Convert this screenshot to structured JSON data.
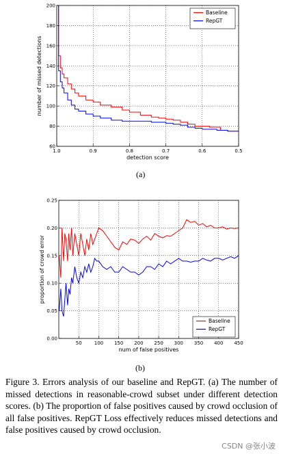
{
  "chart_data": [
    {
      "type": "line",
      "panel": "(a)",
      "xlabel": "detection score",
      "ylabel": "number of missed detections",
      "xlim": [
        1.0,
        0.5
      ],
      "ylim": [
        60,
        200
      ],
      "x_reversed": true,
      "x_ticks": [
        1.0,
        0.9,
        0.8,
        0.7,
        0.6,
        0.5
      ],
      "x_tick_labels": [
        "1.0",
        "0.9",
        "0.8",
        "0.7",
        "0.6",
        "0.5"
      ],
      "y_ticks": [
        60,
        80,
        100,
        120,
        140,
        160,
        180,
        200
      ],
      "y_tick_labels": [
        "60",
        "80",
        "100",
        "120",
        "140",
        "160",
        "180",
        "200"
      ],
      "legend_position": "top-right",
      "grid": true,
      "series": [
        {
          "name": "Baseline",
          "color": "#ff0000",
          "x": [
            1.0,
            0.995,
            0.99,
            0.985,
            0.98,
            0.97,
            0.96,
            0.95,
            0.94,
            0.92,
            0.9,
            0.88,
            0.85,
            0.82,
            0.8,
            0.77,
            0.74,
            0.72,
            0.7,
            0.68,
            0.66,
            0.64,
            0.62,
            0.6,
            0.58,
            0.56,
            0.55,
            0.53,
            0.51,
            0.5
          ],
          "values": [
            200,
            150,
            138,
            132,
            128,
            122,
            117,
            113,
            110,
            106,
            104,
            101,
            99,
            96,
            94,
            91,
            89,
            88,
            87,
            86,
            84,
            82,
            80,
            80,
            79,
            79,
            76,
            75,
            75,
            75
          ]
        },
        {
          "name": "RepGT",
          "color": "#0000ff",
          "x": [
            1.0,
            0.995,
            0.99,
            0.985,
            0.98,
            0.97,
            0.96,
            0.95,
            0.94,
            0.92,
            0.9,
            0.88,
            0.85,
            0.82,
            0.8,
            0.77,
            0.74,
            0.72,
            0.7,
            0.68,
            0.66,
            0.64,
            0.62,
            0.6,
            0.58,
            0.56,
            0.55,
            0.53,
            0.51,
            0.5
          ],
          "values": [
            200,
            135,
            124,
            118,
            113,
            106,
            101,
            97,
            95,
            92,
            90,
            88,
            86,
            85,
            85,
            85,
            84,
            84,
            83,
            82,
            81,
            79,
            78,
            77,
            77,
            76,
            76,
            75,
            75,
            75
          ]
        }
      ]
    },
    {
      "type": "line",
      "panel": "(b)",
      "xlabel": "num of false positives",
      "ylabel": "proportion of crowd error",
      "xlim": [
        0,
        450
      ],
      "ylim": [
        0,
        0.25
      ],
      "x_ticks": [
        50,
        100,
        150,
        200,
        250,
        300,
        350,
        400,
        450
      ],
      "x_tick_labels": [
        "50",
        "100",
        "150",
        "200",
        "250",
        "300",
        "350",
        "400",
        "450"
      ],
      "y_ticks": [
        0,
        0.05,
        0.1,
        0.15,
        0.2,
        0.25
      ],
      "y_tick_labels": [
        "0.00",
        "0.05",
        "0.10",
        "0.15",
        "0.20",
        "0.25"
      ],
      "legend_position": "bottom-right",
      "grid": true,
      "series": [
        {
          "name": "Baseline",
          "color": "#ff0000",
          "x": [
            1,
            5,
            8,
            12,
            15,
            18,
            22,
            25,
            28,
            32,
            35,
            40,
            45,
            50,
            55,
            60,
            65,
            70,
            75,
            80,
            85,
            90,
            95,
            100,
            110,
            120,
            130,
            140,
            150,
            160,
            170,
            180,
            190,
            200,
            210,
            220,
            230,
            240,
            250,
            260,
            270,
            280,
            290,
            300,
            310,
            320,
            330,
            340,
            350,
            360,
            370,
            380,
            390,
            400,
            410,
            420,
            430,
            440,
            450
          ],
          "values": [
            0.15,
            0.11,
            0.2,
            0.14,
            0.19,
            0.18,
            0.14,
            0.19,
            0.16,
            0.2,
            0.15,
            0.19,
            0.17,
            0.15,
            0.19,
            0.17,
            0.15,
            0.18,
            0.16,
            0.19,
            0.17,
            0.18,
            0.19,
            0.2,
            0.195,
            0.185,
            0.175,
            0.165,
            0.16,
            0.175,
            0.17,
            0.18,
            0.178,
            0.172,
            0.18,
            0.185,
            0.178,
            0.19,
            0.185,
            0.182,
            0.186,
            0.185,
            0.19,
            0.195,
            0.2,
            0.215,
            0.21,
            0.212,
            0.205,
            0.208,
            0.202,
            0.205,
            0.2,
            0.2,
            0.202,
            0.198,
            0.2,
            0.199,
            0.2
          ]
        },
        {
          "name": "RepGT",
          "color": "#0000ff",
          "x": [
            1,
            5,
            8,
            12,
            15,
            18,
            22,
            25,
            28,
            32,
            35,
            40,
            45,
            50,
            55,
            60,
            65,
            70,
            75,
            80,
            85,
            90,
            95,
            100,
            110,
            120,
            130,
            140,
            150,
            160,
            170,
            180,
            190,
            200,
            210,
            220,
            230,
            240,
            250,
            260,
            270,
            280,
            290,
            300,
            310,
            320,
            330,
            340,
            350,
            360,
            370,
            380,
            390,
            400,
            410,
            420,
            430,
            440,
            450
          ],
          "values": [
            0.05,
            0.09,
            0.05,
            0.04,
            0.07,
            0.1,
            0.06,
            0.09,
            0.08,
            0.11,
            0.1,
            0.13,
            0.11,
            0.1,
            0.12,
            0.11,
            0.13,
            0.12,
            0.135,
            0.12,
            0.13,
            0.145,
            0.14,
            0.14,
            0.13,
            0.125,
            0.13,
            0.12,
            0.12,
            0.13,
            0.125,
            0.12,
            0.12,
            0.115,
            0.12,
            0.13,
            0.13,
            0.125,
            0.135,
            0.13,
            0.14,
            0.135,
            0.14,
            0.145,
            0.14,
            0.14,
            0.138,
            0.14,
            0.14,
            0.145,
            0.142,
            0.14,
            0.145,
            0.145,
            0.142,
            0.145,
            0.148,
            0.145,
            0.15
          ]
        }
      ]
    }
  ],
  "subfigure_labels": {
    "a": "(a)",
    "b": "(b)"
  },
  "caption": "Figure 3. Errors analysis of our baseline and RepGT. (a) The number of missed detections in reasonable-crowd subset under different detection scores. (b) The proportion of false positives caused by crowd occlusion of all false positives. RepGT Loss effectively reduces missed detections and false positives caused by crowd occlusion.",
  "watermark": "CSDN @张小波"
}
